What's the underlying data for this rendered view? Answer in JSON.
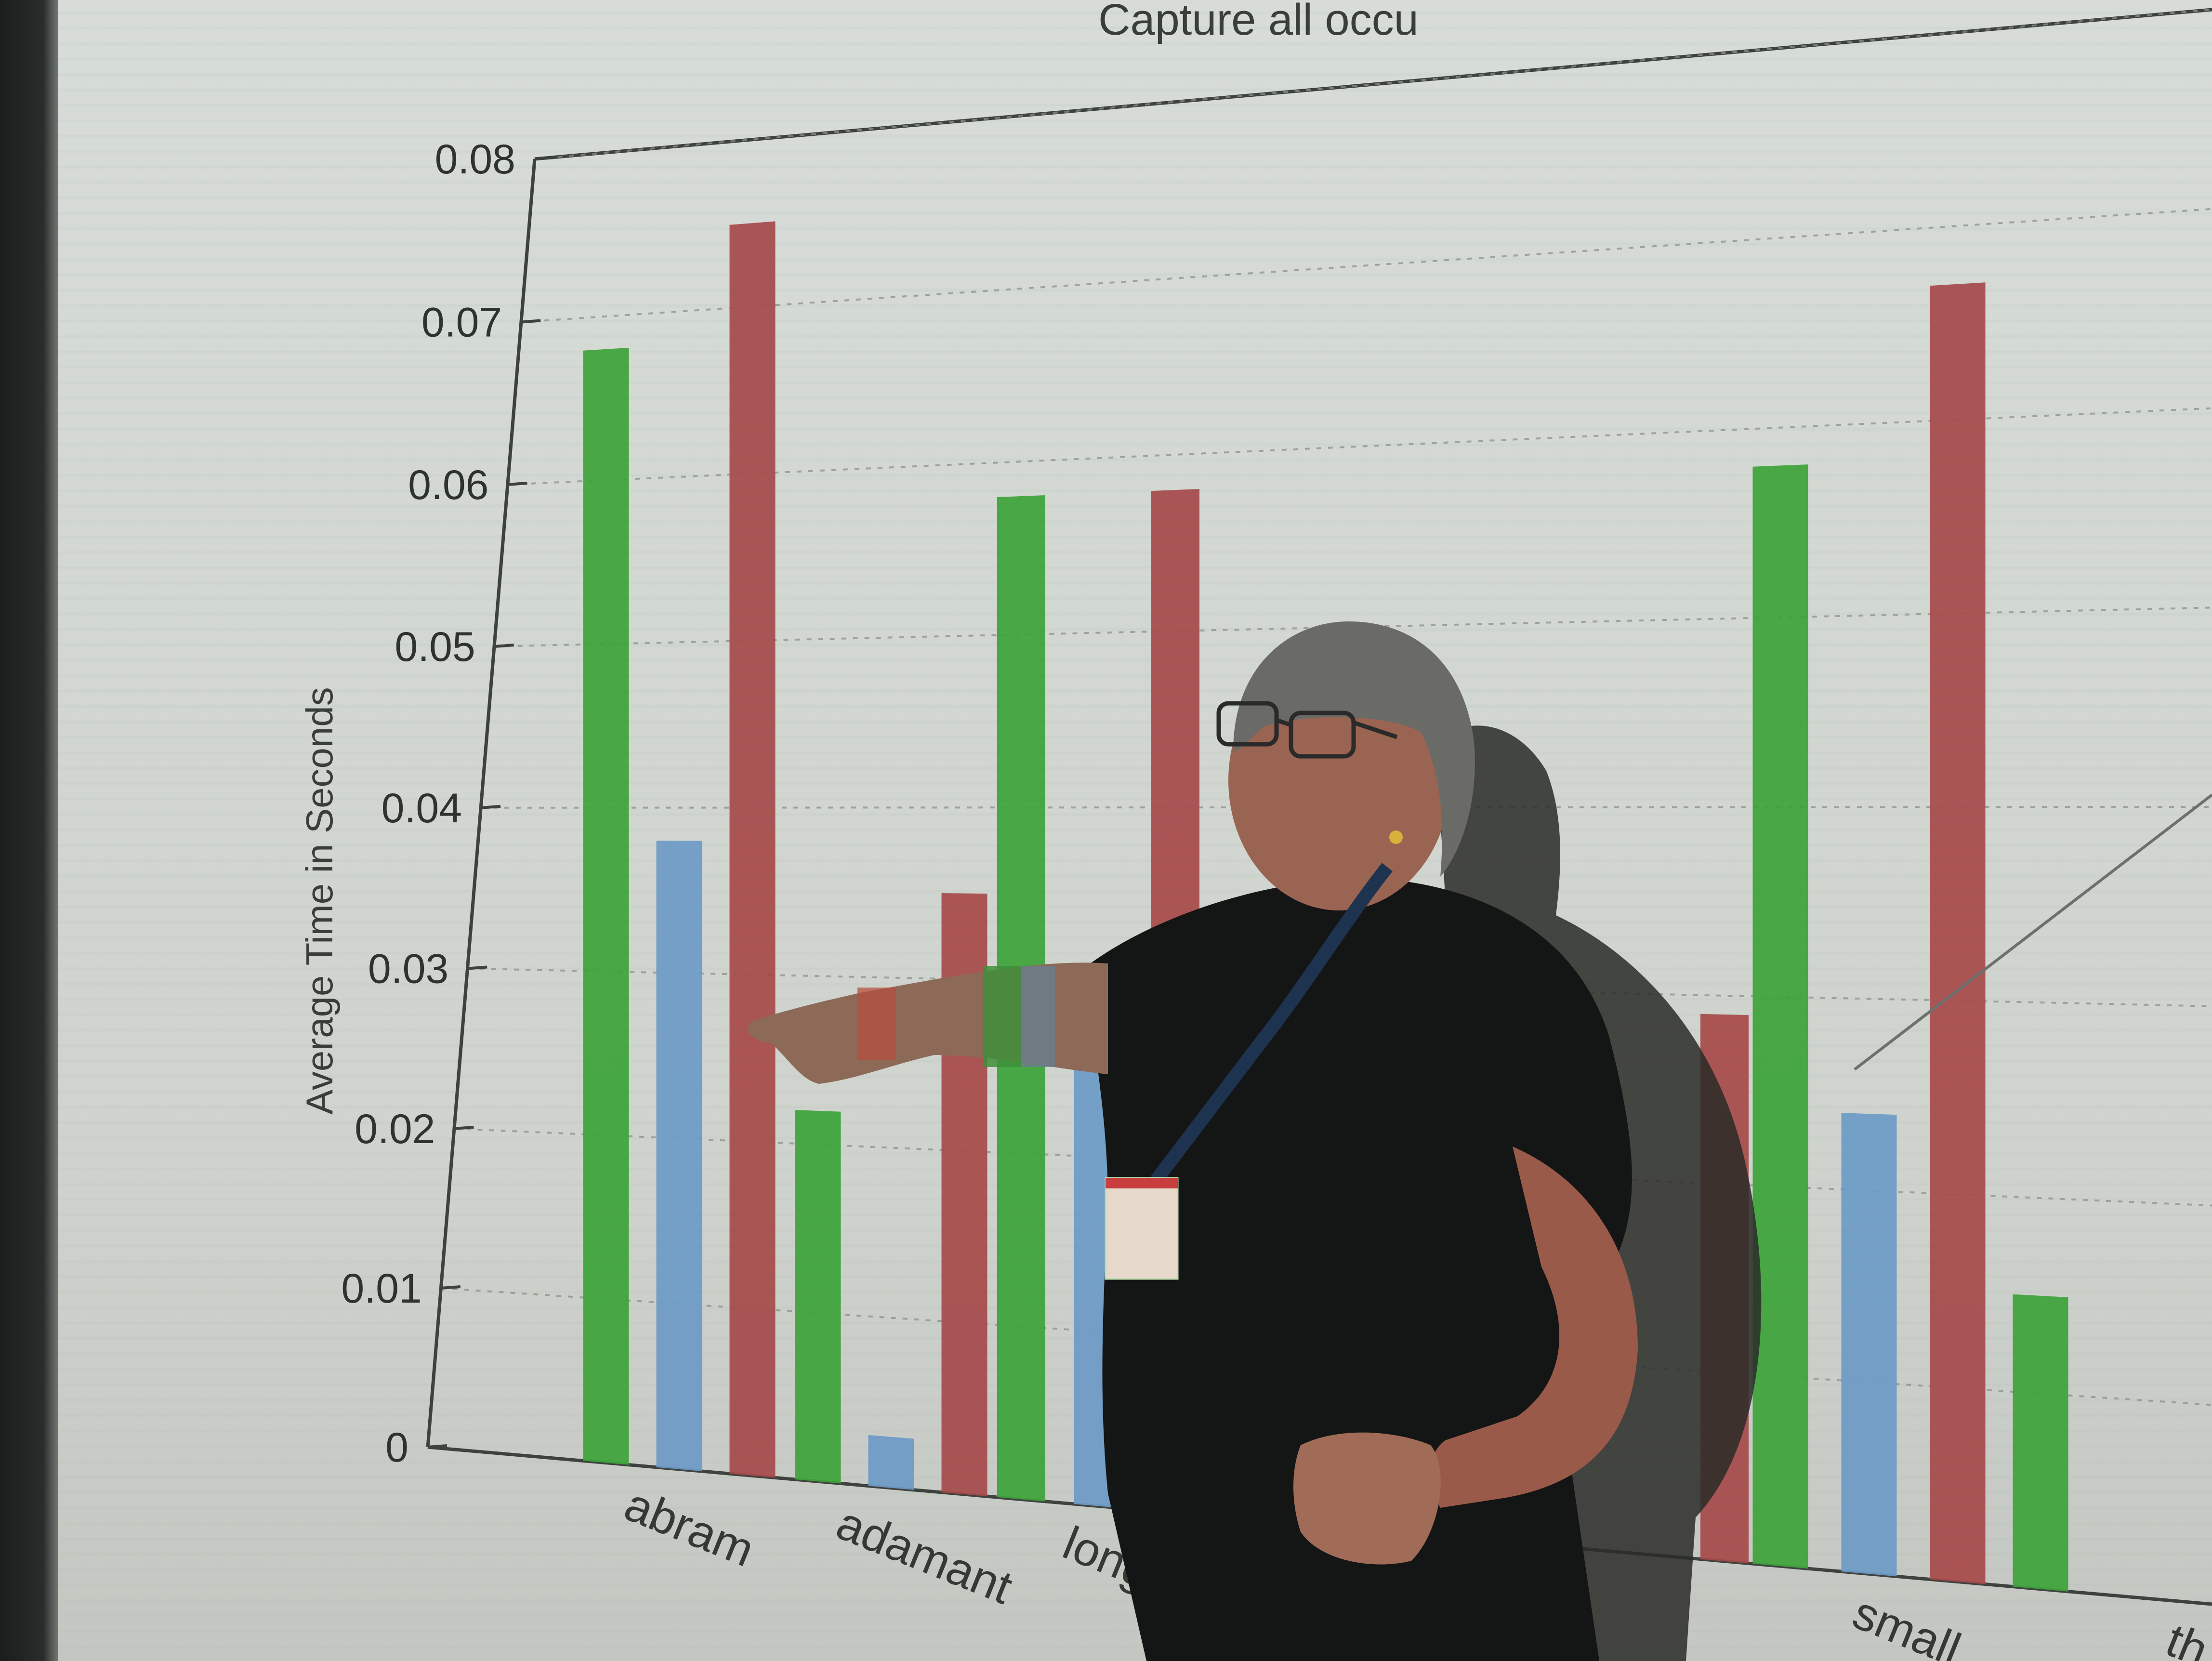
{
  "photo": {
    "title": "Capture all occu",
    "scene": "projector-slide",
    "person": "presenter-pointing"
  },
  "chart_data": {
    "type": "bar",
    "title": "Capture all occu",
    "ylabel": "Average Time in Seconds",
    "xlabel": "",
    "ylim": [
      0,
      0.08
    ],
    "yticks": [
      "0",
      "0.01",
      "0.02",
      "0.03",
      "0.04",
      "0.05",
      "0.06",
      "0.07",
      "0.08"
    ],
    "categories": [
      "abram",
      "adamant",
      "long",
      "",
      "small",
      "th"
    ],
    "series": [
      {
        "color": "#3da33a",
        "values": [
          0.068,
          0.022,
          0.058,
          0.0,
          0.058,
          0.015
        ]
      },
      {
        "color": "#6d9ac6",
        "values": [
          0.038,
          0.003,
          0.031,
          0.0,
          0.024,
          0.0
        ]
      },
      {
        "color": "#a64a4a",
        "values": [
          0.075,
          0.035,
          0.058,
          0.029,
          0.067,
          0.0
        ]
      }
    ],
    "grid": true
  }
}
